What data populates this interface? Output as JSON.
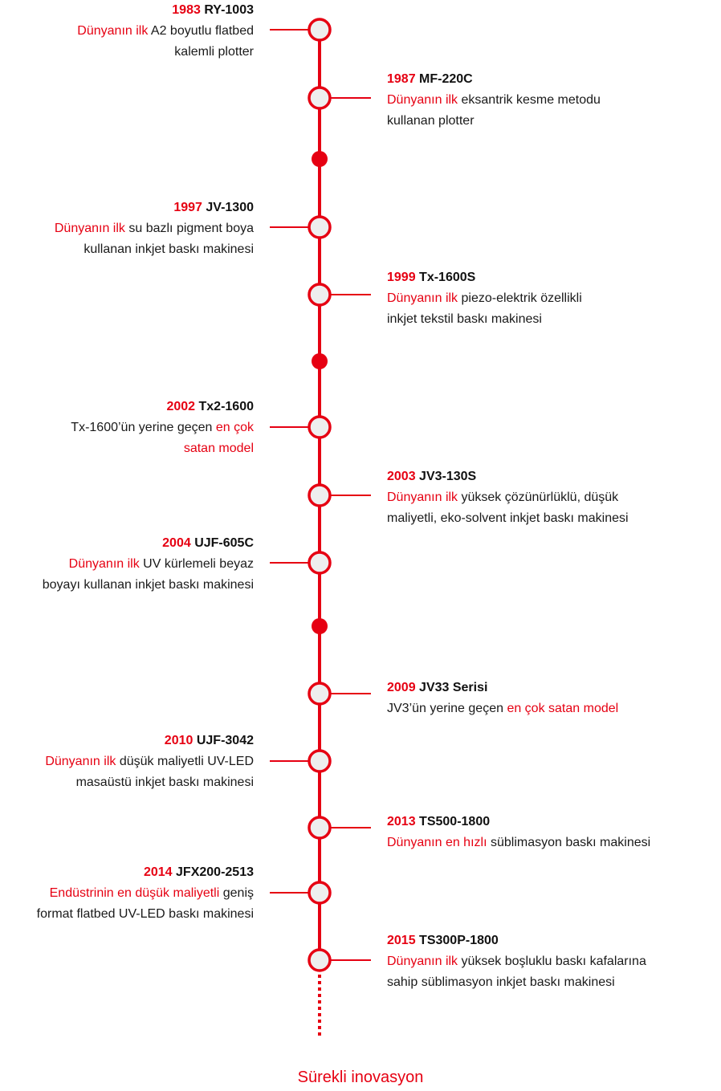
{
  "accent_color": "#e60012",
  "footer": "Sürekli inovasyon",
  "entries": [
    {
      "year": "1983",
      "model": "RY-1003",
      "side": "left",
      "desc": [
        {
          "t": "Dünyanın ilk",
          "hl": true
        },
        {
          "t": " A2 boyutlu flatbed",
          "hl": false
        },
        {
          "br": true
        },
        {
          "t": "kalemli plotter",
          "hl": false
        }
      ]
    },
    {
      "year": "1987",
      "model": "MF-220C",
      "side": "right",
      "desc": [
        {
          "t": "Dünyanın ilk",
          "hl": true
        },
        {
          "t": " eksantrik kesme metodu",
          "hl": false
        },
        {
          "br": true
        },
        {
          "t": "kullanan plotter",
          "hl": false
        }
      ]
    },
    {
      "year": "1997",
      "model": "JV-1300",
      "side": "left",
      "desc": [
        {
          "t": "Dünyanın ilk",
          "hl": true
        },
        {
          "t": " su bazlı pigment boya",
          "hl": false
        },
        {
          "br": true
        },
        {
          "t": "kullanan inkjet baskı makinesi",
          "hl": false
        }
      ]
    },
    {
      "year": "1999",
      "model": "Tx-1600S",
      "side": "right",
      "desc": [
        {
          "t": "Dünyanın ilk",
          "hl": true
        },
        {
          "t": " piezo-elektrik özellikli",
          "hl": false
        },
        {
          "br": true
        },
        {
          "t": "inkjet tekstil baskı makinesi",
          "hl": false
        }
      ]
    },
    {
      "year": "2002",
      "model": "Tx2-1600",
      "side": "left",
      "desc": [
        {
          "t": "Tx-1600’ün yerine geçen ",
          "hl": false
        },
        {
          "t": "en çok",
          "hl": true
        },
        {
          "br": true
        },
        {
          "t": "satan model",
          "hl": true
        }
      ]
    },
    {
      "year": "2003",
      "model": "JV3-130S",
      "side": "right",
      "desc": [
        {
          "t": "Dünyanın ilk",
          "hl": true
        },
        {
          "t": " yüksek çözünürlüklü, düşük",
          "hl": false
        },
        {
          "br": true
        },
        {
          "t": "maliyetli, eko-solvent inkjet baskı makinesi",
          "hl": false
        }
      ]
    },
    {
      "year": "2004",
      "model": "UJF-605C",
      "side": "left",
      "desc": [
        {
          "t": "Dünyanın ilk",
          "hl": true
        },
        {
          "t": " UV kürlemeli beyaz ",
          "hl": false
        },
        {
          "br": true
        },
        {
          "t": "boyayı kullanan inkjet baskı makinesi",
          "hl": false
        }
      ]
    },
    {
      "year": "2009",
      "model": "JV33 Serisi",
      "side": "right",
      "desc": [
        {
          "t": "JV3’ün yerine geçen ",
          "hl": false
        },
        {
          "t": "en çok satan model",
          "hl": true
        }
      ]
    },
    {
      "year": "2010",
      "model": "UJF-3042",
      "side": "left",
      "desc": [
        {
          "t": "Dünyanın ilk",
          "hl": true
        },
        {
          "t": " düşük maliyetli UV-LED",
          "hl": false
        },
        {
          "br": true
        },
        {
          "t": "masaüstü inkjet baskı makinesi",
          "hl": false
        }
      ]
    },
    {
      "year": "2013",
      "model": "TS500-1800",
      "side": "right",
      "desc": [
        {
          "t": "Dünyanın en hızlı",
          "hl": true
        },
        {
          "t": " süblimasyon baskı makinesi",
          "hl": false
        }
      ]
    },
    {
      "year": "2014",
      "model": "JFX200-2513",
      "side": "left",
      "desc": [
        {
          "t": "Endüstrinin en düşük maliyetli",
          "hl": true
        },
        {
          "t": " geniş",
          "hl": false
        },
        {
          "br": true
        },
        {
          "t": "format flatbed UV-LED baskı makinesi",
          "hl": false
        }
      ]
    },
    {
      "year": "2015",
      "model": "TS300P-1800",
      "side": "right",
      "desc": [
        {
          "t": "Dünyanın ilk",
          "hl": true
        },
        {
          "t": " yüksek boşluklu baskı kafalarına",
          "hl": false
        },
        {
          "br": true
        },
        {
          "t": "sahip süblimasyon inkjet baskı makinesi",
          "hl": false
        }
      ]
    }
  ]
}
